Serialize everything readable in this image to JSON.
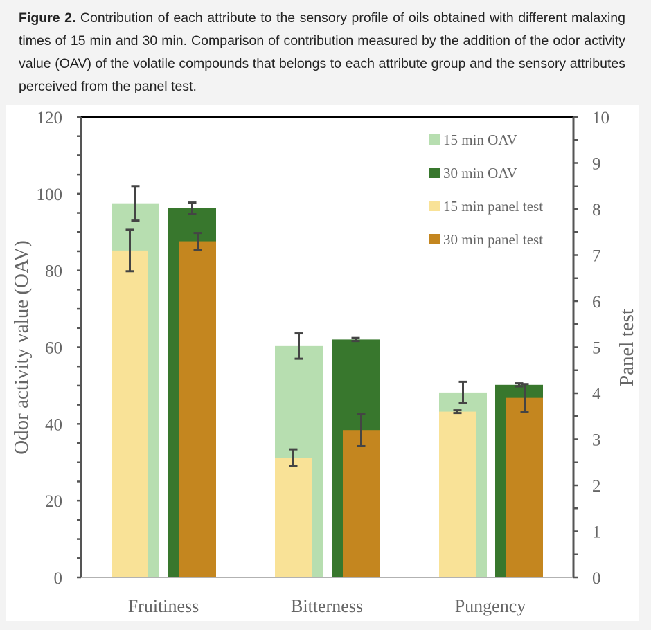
{
  "caption": {
    "label": "Figure 2.",
    "text": " Contribution of each attribute to the sensory profile of oils obtained with different malaxing times of 15 min and 30 min. Comparison of contribution measured by the addition of the odor activity value (OAV) of the volatile compounds that belongs to each attribute group and the sensory attributes perceived from the panel test."
  },
  "chart_data": {
    "type": "bar",
    "categories": [
      "Fruitiness",
      "Bitterness",
      "Pungency"
    ],
    "ylabel": "Odor activity value (OAV)",
    "y2label": "Panel test",
    "ylim": [
      0,
      120
    ],
    "y2lim": [
      0,
      10
    ],
    "yticks": [
      "0",
      "20",
      "40",
      "60",
      "80",
      "100",
      "120"
    ],
    "y2ticks": [
      "0",
      "1",
      "2",
      "3",
      "4",
      "5",
      "6",
      "7",
      "8",
      "9",
      "10"
    ],
    "legend_position": "top-right",
    "series": [
      {
        "name": "15 min OAV",
        "axis": "left",
        "color": "#b7deb0",
        "values": [
          97.5,
          60.3,
          48.2
        ],
        "errors": [
          4.5,
          3.3,
          2.8
        ]
      },
      {
        "name": "30 min OAV",
        "axis": "left",
        "color": "#38772d",
        "values": [
          96.2,
          62.0,
          50.2
        ],
        "errors": [
          1.5,
          0.4,
          0.4
        ]
      },
      {
        "name": "15 min panel test",
        "axis": "right",
        "color": "#f9e297",
        "values": [
          7.1,
          2.6,
          3.6
        ],
        "errors": [
          0.45,
          0.18,
          0.03
        ]
      },
      {
        "name": "30 min panel test",
        "axis": "right",
        "color": "#c4861f",
        "values": [
          7.3,
          3.2,
          3.9
        ],
        "errors": [
          0.18,
          0.35,
          0.3
        ]
      }
    ]
  }
}
